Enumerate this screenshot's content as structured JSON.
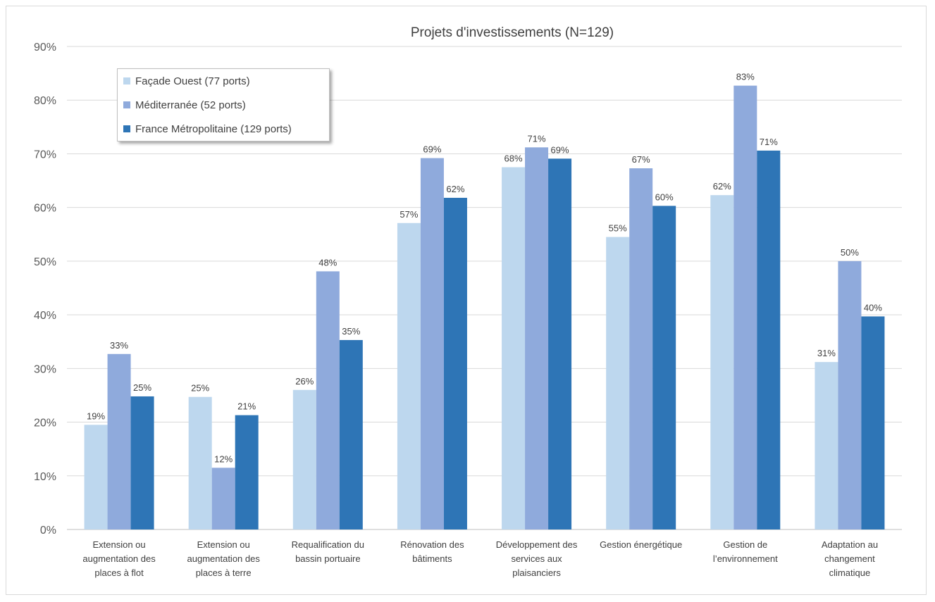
{
  "chart_data": {
    "type": "bar",
    "title": "Projets d'investissements (N=129)",
    "xlabel": "",
    "ylabel": "",
    "ylim": [
      0,
      90
    ],
    "y_ticks": [
      "0%",
      "10%",
      "20%",
      "30%",
      "40%",
      "50%",
      "60%",
      "70%",
      "80%",
      "90%"
    ],
    "grid": true,
    "legend_position": "top-left",
    "categories": [
      [
        "Extension ou",
        "augmentation des",
        "places à flot"
      ],
      [
        "Extension ou",
        "augmentation des",
        "places à terre"
      ],
      [
        "Requalification du",
        "bassin portuaire"
      ],
      [
        "Rénovation des",
        "bâtiments"
      ],
      [
        "Développement des",
        "services aux",
        "plaisanciers"
      ],
      [
        "Gestion énergétique"
      ],
      [
        "Gestion de",
        "l’environnement"
      ],
      [
        "Adaptation au",
        "changement",
        "climatique"
      ]
    ],
    "series": [
      {
        "name": "Façade Ouest (77 ports)",
        "color": "#bdd7ee",
        "values": [
          19.5,
          24.7,
          26.0,
          57.1,
          67.5,
          54.5,
          62.3,
          31.2
        ],
        "labels": [
          "19%",
          "25%",
          "26%",
          "57%",
          "68%",
          "55%",
          "62%",
          "31%"
        ]
      },
      {
        "name": "Méditerranée (52 ports)",
        "color": "#8faadc",
        "values": [
          32.7,
          11.5,
          48.1,
          69.2,
          71.2,
          67.3,
          82.7,
          50.0
        ],
        "labels": [
          "33%",
          "12%",
          "48%",
          "69%",
          "71%",
          "67%",
          "83%",
          "50%"
        ]
      },
      {
        "name": "France Métropolitaine (129 ports)",
        "color": "#2e75b6",
        "values": [
          24.8,
          21.3,
          35.3,
          61.8,
          69.1,
          60.3,
          70.6,
          39.7
        ],
        "labels": [
          "25%",
          "21%",
          "35%",
          "62%",
          "69%",
          "60%",
          "71%",
          "40%"
        ]
      }
    ]
  }
}
